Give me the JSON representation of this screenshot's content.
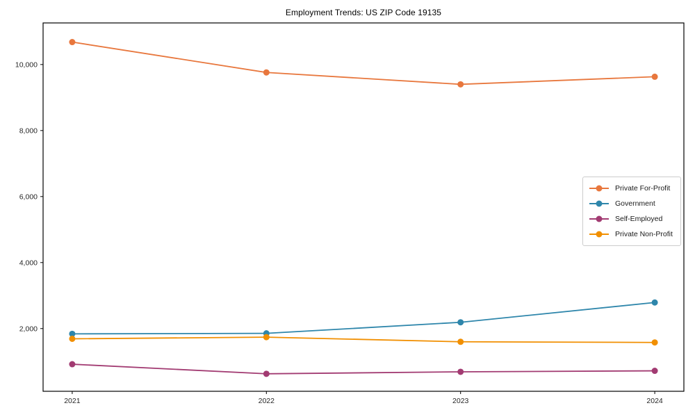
{
  "chart_data": {
    "type": "line",
    "title": "Employment Trends: US ZIP Code 19135",
    "xlabel": "",
    "ylabel": "",
    "x": [
      2021,
      2022,
      2023,
      2024
    ],
    "xtick_labels": [
      "2021",
      "2022",
      "2023",
      "2024"
    ],
    "ytick_values": [
      2000,
      4000,
      6000,
      8000,
      10000
    ],
    "ytick_labels": [
      "2,000",
      "4,000",
      "6,000",
      "8,000",
      "10,000"
    ],
    "xlim": [
      2020.85,
      2024.15
    ],
    "ylim": [
      100,
      11260
    ],
    "grid": false,
    "legend_position": "center-right",
    "series": [
      {
        "name": "Private For-Profit",
        "color": "#E8773D",
        "values": [
          10680,
          9760,
          9400,
          9630
        ]
      },
      {
        "name": "Government",
        "color": "#2E86AB",
        "values": [
          1840,
          1855,
          2190,
          2790
        ]
      },
      {
        "name": "Self-Employed",
        "color": "#A23B72",
        "values": [
          920,
          630,
          690,
          720
        ]
      },
      {
        "name": "Private Non-Profit",
        "color": "#F18F01",
        "values": [
          1690,
          1740,
          1600,
          1580
        ]
      }
    ],
    "axis_color": "#000000",
    "tick_label_color": "#262626",
    "tick_font_size": 10.5
  }
}
